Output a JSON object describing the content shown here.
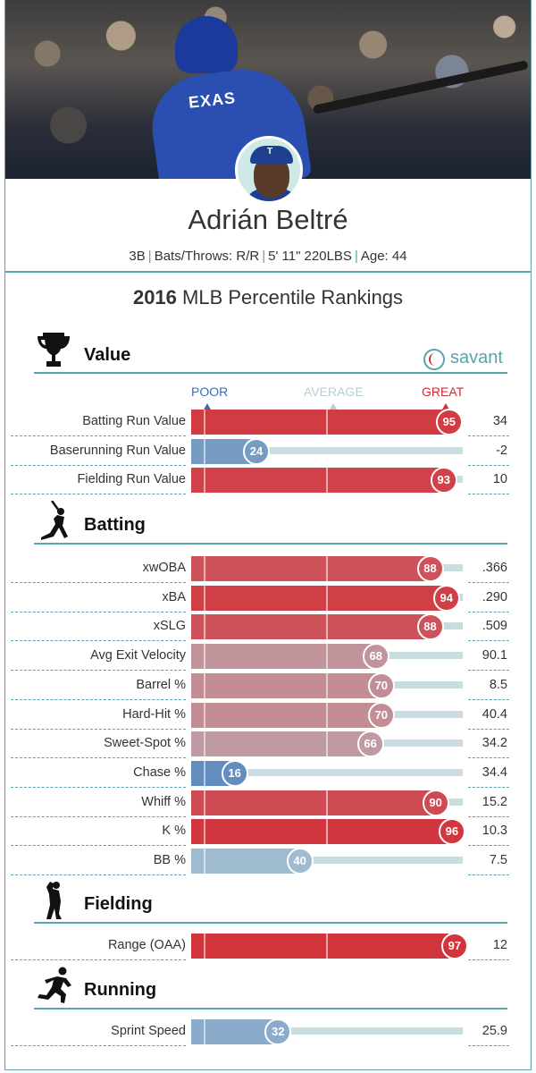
{
  "player": {
    "name": "Adrián Beltré",
    "position": "3B",
    "bats_throws": "Bats/Throws: R/R",
    "height_weight": "5' 11\" 220LBS",
    "age": "Age: 44",
    "jersey_text": "EXAS",
    "cap_logo": "T"
  },
  "title": {
    "year": "2016",
    "text": "MLB Percentile Rankings"
  },
  "brand": {
    "name": "savant",
    "color": "#5aa3ac"
  },
  "legend": {
    "poor": "POOR",
    "average": "AVERAGE",
    "great": "GREAT"
  },
  "colors": {
    "accent": "#5aa3ac",
    "great": "#d42a32",
    "poor": "#3c6db4",
    "average": "#b6cfd6"
  },
  "sections": [
    {
      "id": "value",
      "label": "Value",
      "icon": "trophy-icon"
    },
    {
      "id": "batting",
      "label": "Batting",
      "icon": "batter-icon"
    },
    {
      "id": "fielding",
      "label": "Fielding",
      "icon": "fielder-icon"
    },
    {
      "id": "running",
      "label": "Running",
      "icon": "runner-icon"
    }
  ],
  "chart_data": {
    "type": "bar",
    "title": "2016 MLB Percentile Rankings",
    "xlim": [
      0,
      100
    ],
    "series": [
      {
        "section": "Value",
        "metric": "Batting Run Value",
        "percentile": 95,
        "value": "34"
      },
      {
        "section": "Value",
        "metric": "Baserunning Run Value",
        "percentile": 24,
        "value": "-2"
      },
      {
        "section": "Value",
        "metric": "Fielding Run Value",
        "percentile": 93,
        "value": "10"
      },
      {
        "section": "Batting",
        "metric": "xwOBA",
        "percentile": 88,
        "value": ".366"
      },
      {
        "section": "Batting",
        "metric": "xBA",
        "percentile": 94,
        "value": ".290"
      },
      {
        "section": "Batting",
        "metric": "xSLG",
        "percentile": 88,
        "value": ".509"
      },
      {
        "section": "Batting",
        "metric": "Avg Exit Velocity",
        "percentile": 68,
        "value": "90.1"
      },
      {
        "section": "Batting",
        "metric": "Barrel %",
        "percentile": 70,
        "value": "8.5"
      },
      {
        "section": "Batting",
        "metric": "Hard-Hit %",
        "percentile": 70,
        "value": "40.4"
      },
      {
        "section": "Batting",
        "metric": "Sweet-Spot %",
        "percentile": 66,
        "value": "34.2"
      },
      {
        "section": "Batting",
        "metric": "Chase %",
        "percentile": 16,
        "value": "34.4"
      },
      {
        "section": "Batting",
        "metric": "Whiff %",
        "percentile": 90,
        "value": "15.2"
      },
      {
        "section": "Batting",
        "metric": "K %",
        "percentile": 96,
        "value": "10.3"
      },
      {
        "section": "Batting",
        "metric": "BB %",
        "percentile": 40,
        "value": "7.5"
      },
      {
        "section": "Fielding",
        "metric": "Range (OAA)",
        "percentile": 97,
        "value": "12"
      },
      {
        "section": "Running",
        "metric": "Sprint Speed",
        "percentile": 32,
        "value": "25.9"
      }
    ]
  }
}
